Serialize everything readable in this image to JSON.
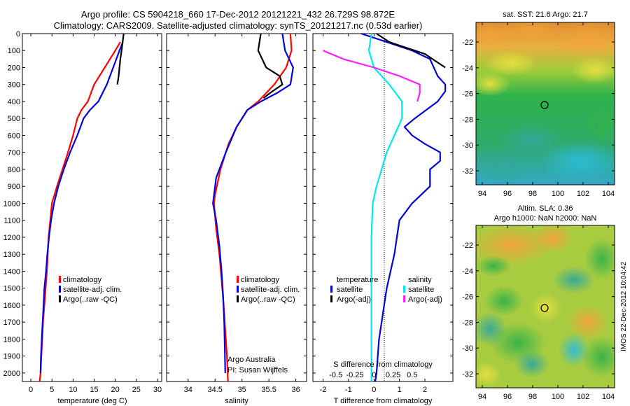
{
  "header": {
    "line1": "Argo profile: CS 5904218_660 17-Dec-2012 20121221_432 26.729S 98.872E",
    "line2": "Climatology: CARS2009. Satellite-adjusted climatology: synTS_20121217.nc (0.53d earlier)"
  },
  "colors": {
    "climatology": "#ff0000",
    "satellite": "#0000dd",
    "argo": "#000000",
    "sat_salinity": "#00e8e8",
    "argo_salinity": "#ff20ff"
  },
  "chart_data": [
    {
      "type": "line",
      "xlabel": "temperature (deg C)",
      "xlim": [
        -2,
        31
      ],
      "ylim": [
        0,
        2050
      ],
      "xticks": [
        "0",
        "5",
        "10",
        "15",
        "20",
        "25",
        "30"
      ],
      "yticks": [
        "0",
        "100",
        "200",
        "300",
        "400",
        "500",
        "600",
        "700",
        "800",
        "900",
        "1000",
        "1100",
        "1200",
        "1300",
        "1400",
        "1500",
        "1600",
        "1700",
        "1800",
        "1900",
        "2000"
      ],
      "legend": [
        "climatology",
        "satellite-adj. clim.",
        "Argo(..raw -QC)"
      ],
      "series": [
        {
          "name": "climatology",
          "color": "#ff0000",
          "x": [
            21.2,
            20,
            17.5,
            15,
            13.5,
            12,
            11,
            10,
            8.8,
            7.5,
            6.2,
            5,
            4.2,
            3.8,
            3.5,
            3.2,
            2.9,
            2.7,
            2.5,
            2.3,
            2.1
          ],
          "y": [
            50,
            100,
            200,
            300,
            400,
            450,
            500,
            600,
            700,
            800,
            900,
            1000,
            1200,
            1400,
            1500,
            1600,
            1700,
            1800,
            1900,
            2000,
            2050
          ]
        },
        {
          "name": "satellite-adj. clim.",
          "color": "#0000dd",
          "x": [
            21.8,
            21,
            19.5,
            18,
            16,
            14,
            12.5,
            11,
            9.3,
            7.8,
            6.5,
            5.5,
            4.8,
            4.3,
            3.9,
            3.6,
            3.2,
            3,
            2.8,
            2.6,
            2.4,
            2.3
          ],
          "y": [
            50,
            100,
            200,
            300,
            400,
            450,
            500,
            600,
            700,
            800,
            900,
            1000,
            1100,
            1200,
            1300,
            1400,
            1500,
            1600,
            1700,
            1800,
            1900,
            2000
          ]
        },
        {
          "name": "Argo(..raw -QC)",
          "color": "#000000",
          "x": [
            22,
            21.5,
            21.2,
            20.8,
            20.5
          ],
          "y": [
            0,
            100,
            150,
            250,
            300
          ]
        }
      ]
    },
    {
      "type": "line",
      "xlabel": "salinity",
      "xlim": [
        33.6,
        36.2
      ],
      "ylim": [
        0,
        2050
      ],
      "xticks": [
        "34",
        "34.5",
        "35",
        "35.5",
        "36"
      ],
      "legend": [
        "climatology",
        "satellite-adj. clim.",
        "Argo(..raw -QC)"
      ],
      "annotations": [
        "Argo Australia",
        "PI: Susan Wijffels"
      ],
      "series": [
        {
          "name": "climatology",
          "color": "#ff0000",
          "x": [
            35.9,
            35.92,
            35.82,
            35.6,
            35.3,
            35.1,
            34.9,
            34.75,
            34.6,
            34.5,
            34.48,
            34.52,
            34.58,
            34.62,
            34.66,
            34.69,
            34.72,
            34.74
          ],
          "y": [
            0,
            100,
            200,
            300,
            400,
            450,
            550,
            650,
            800,
            950,
            1000,
            1150,
            1300,
            1450,
            1600,
            1750,
            1900,
            2050
          ]
        },
        {
          "name": "satellite-adj. clim.",
          "color": "#0000dd",
          "x": [
            35.75,
            35.8,
            35.95,
            35.9,
            35.65,
            35.35,
            35.1,
            34.9,
            34.7,
            34.52,
            34.46,
            34.52,
            34.58,
            34.62,
            34.65,
            34.67,
            34.68,
            34.69
          ],
          "y": [
            0,
            100,
            200,
            300,
            350,
            400,
            450,
            550,
            700,
            850,
            1000,
            1100,
            1250,
            1400,
            1550,
            1700,
            1850,
            2000
          ]
        },
        {
          "name": "Argo(..raw -QC)",
          "color": "#000000",
          "x": [
            35.35,
            35.3,
            35.45,
            35.7,
            35.75,
            35.52,
            35.4
          ],
          "y": [
            0,
            100,
            200,
            250,
            300,
            350,
            380
          ]
        }
      ]
    },
    {
      "type": "line",
      "xlabel": "T difference from climatology",
      "x2label": "S difference from climatology",
      "xlim": [
        -2.4,
        3.1
      ],
      "ylim": [
        0,
        2050
      ],
      "xticks": [
        "-2",
        "-1",
        "0",
        "1",
        "2"
      ],
      "x2ticks": [
        "-0.5",
        "-0.25",
        "0",
        "0.25",
        "0.5"
      ],
      "legend": [
        "temperature",
        "satellite",
        "Argo(-adj)",
        "salinity",
        "satellite",
        "Argo(-adj)"
      ],
      "series": [
        {
          "name": "satellite",
          "color": "#0000dd",
          "x": [
            -0.5,
            0.5,
            1.5,
            2.2,
            2.5,
            2.8,
            2.8,
            2.5,
            1.6,
            1.2,
            1.5,
            2,
            2.6,
            2.6,
            2.2,
            2.2,
            2.2,
            1.5,
            1,
            0.8,
            0.5,
            0.4,
            0.3,
            0.2,
            0.15,
            0.1,
            0.05
          ],
          "y": [
            0,
            50,
            100,
            150,
            250,
            300,
            340,
            400,
            500,
            550,
            600,
            650,
            700,
            750,
            800,
            850,
            900,
            1000,
            1100,
            1300,
            1500,
            1600,
            1700,
            1800,
            1900,
            2000,
            2050
          ]
        },
        {
          "name": "Argo(-adj)",
          "color": "#000000",
          "x": [
            0.1,
            0.6,
            1.2,
            2,
            2.8
          ],
          "y": [
            0,
            50,
            80,
            120,
            200
          ]
        },
        {
          "name": "satellite",
          "color": "#00e8e8",
          "x": [
            -0.1,
            -0.2,
            0,
            0.6,
            1.1,
            1.1,
            0.8,
            0.5,
            0.3,
            0.1,
            -0.05,
            -0.1,
            -0.1,
            -0.1,
            -0.1,
            -0.1
          ],
          "y": [
            0,
            100,
            200,
            300,
            400,
            500,
            600,
            700,
            800,
            900,
            1000,
            1200,
            1400,
            1600,
            1800,
            2050
          ]
        },
        {
          "name": "Argo(-adj)",
          "color": "#ff20ff",
          "x": [
            -2,
            -1.2,
            0,
            1,
            1.8,
            1.8,
            1.7
          ],
          "y": [
            100,
            150,
            200,
            250,
            300,
            350,
            400
          ]
        }
      ]
    }
  ],
  "maps": [
    {
      "title": "sat. SST: 21.6 Argo: 21.7",
      "yticks": [
        "-22",
        "-24",
        "-26",
        "-28",
        "-30",
        "-32"
      ],
      "xticks": [
        "94",
        "96",
        "98",
        "100",
        "102",
        "104"
      ]
    },
    {
      "title1": "Altim. SLA: 0.36",
      "title2": "Argo h1000: NaN h2000: NaN",
      "yticks": [
        "-22",
        "-24",
        "-26",
        "-28",
        "-30",
        "-32"
      ],
      "xticks": [
        "94",
        "96",
        "98",
        "100",
        "102",
        "104"
      ]
    }
  ],
  "footer": {
    "credit": "IMOS 22-Dec-2012 10:04:42"
  }
}
